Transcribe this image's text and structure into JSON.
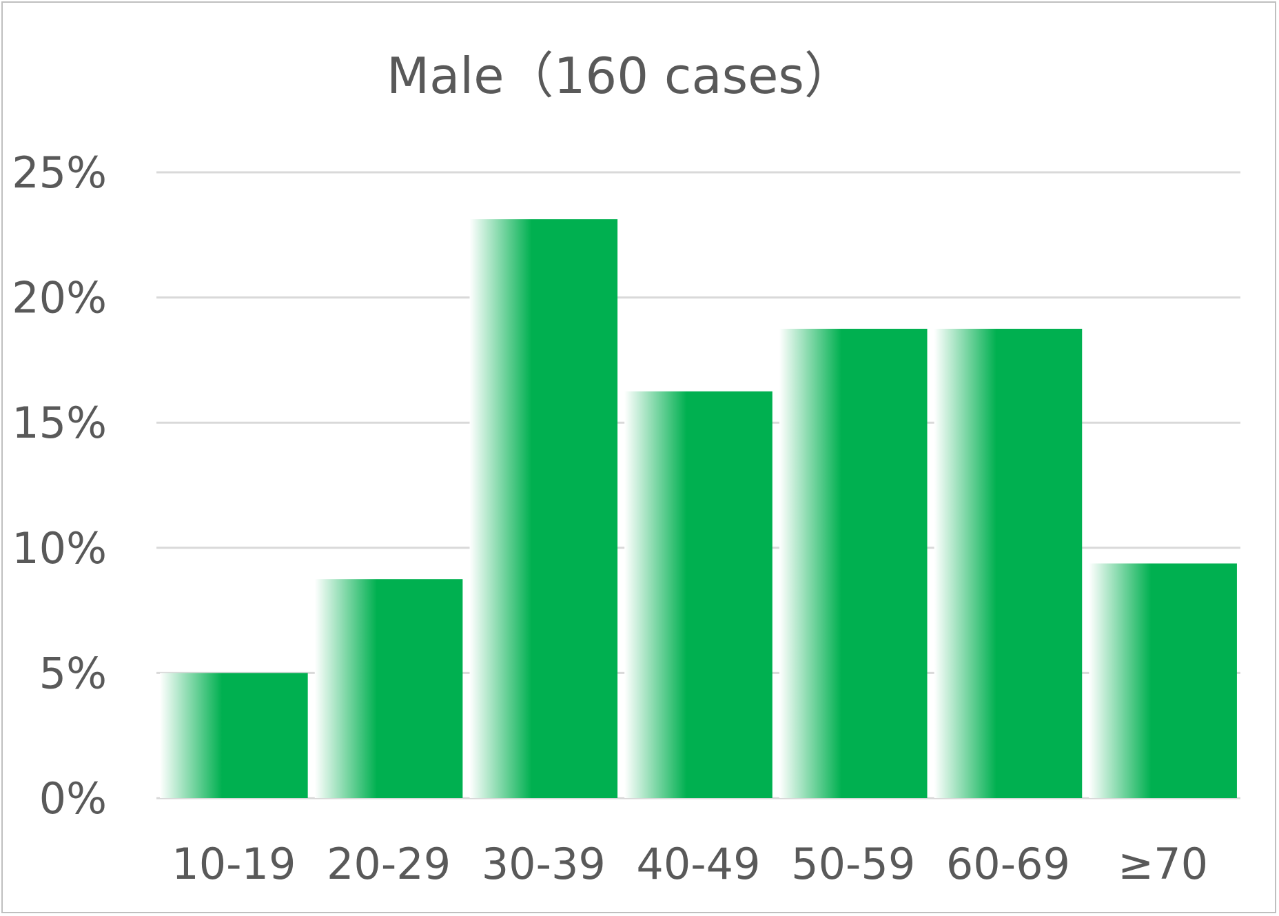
{
  "chart_data": {
    "type": "bar",
    "title": "Male（160 cases）",
    "xlabel": "",
    "ylabel": "",
    "categories": [
      "10-19",
      "20-29",
      "30-39",
      "40-49",
      "50-59",
      "60-69",
      "≥70"
    ],
    "values": [
      5.0,
      8.75,
      23.125,
      16.25,
      18.75,
      18.75,
      9.375
    ],
    "value_unit": "%",
    "ylim": [
      0,
      25
    ],
    "yticks": [
      0,
      5,
      10,
      15,
      20,
      25
    ],
    "ytick_labels": [
      "0%",
      "5%",
      "10%",
      "15%",
      "20%",
      "25%"
    ],
    "grid": true,
    "legend": "none",
    "bar_color": "#00b050",
    "bar_fade_color": "#ffffff",
    "grid_color": "#d9d9d9",
    "text_color": "#595959"
  }
}
